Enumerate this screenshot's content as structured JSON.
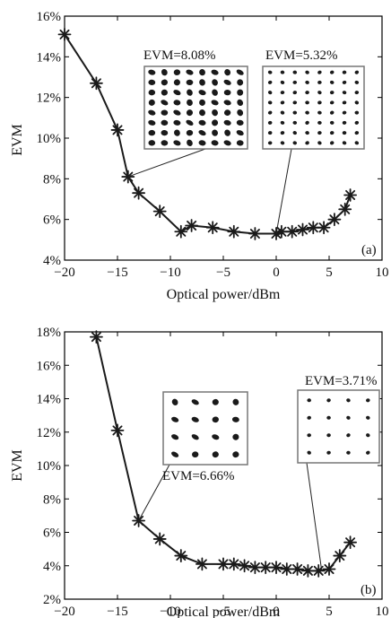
{
  "colors": {
    "line": "#1a1a1a",
    "frame": "#000000",
    "inset_border": "#777777",
    "dot": "#1a1a1a"
  },
  "chart_data": [
    {
      "type": "line",
      "panel_label": "(a)",
      "xlabel": "Optical power/dBm",
      "ylabel": "EVM",
      "xlim": [
        -20,
        10
      ],
      "ylim": [
        4,
        16
      ],
      "x_ticks": [
        -20,
        -15,
        -10,
        -5,
        0,
        5,
        10
      ],
      "y_ticks": [
        4,
        6,
        8,
        10,
        12,
        14,
        16
      ],
      "y_tick_suffix": "%",
      "grid": false,
      "series": [
        {
          "marker": "asterisk",
          "x": [
            -20,
            -17,
            -15,
            -14,
            -13,
            -11,
            -9,
            -8,
            -6,
            -4,
            -2,
            0,
            0.5,
            1.5,
            2.5,
            3.5,
            4.5,
            5.5,
            6.5,
            7
          ],
          "y": [
            15.1,
            12.7,
            10.4,
            8.1,
            7.3,
            6.4,
            5.4,
            5.7,
            5.6,
            5.4,
            5.3,
            5.3,
            5.4,
            5.4,
            5.5,
            5.6,
            5.6,
            6.0,
            6.5,
            7.2
          ]
        }
      ],
      "annotations": [
        {
          "label": "EVM=8.08%",
          "point": [
            -14,
            8.1
          ],
          "grid_n": 8
        },
        {
          "label": "EVM=5.32%",
          "point": [
            0,
            5.3
          ],
          "grid_n": 8
        }
      ]
    },
    {
      "type": "line",
      "panel_label": "(b)",
      "xlabel": "Optical power/dBm",
      "ylabel": "EVM",
      "xlim": [
        -20,
        10
      ],
      "ylim": [
        2,
        18
      ],
      "x_ticks": [
        -20,
        -15,
        -10,
        -5,
        0,
        5,
        10
      ],
      "y_ticks": [
        2,
        4,
        6,
        8,
        10,
        12,
        14,
        16,
        18
      ],
      "y_tick_suffix": "%",
      "grid": false,
      "series": [
        {
          "marker": "asterisk",
          "x": [
            -17,
            -15,
            -13,
            -11,
            -9,
            -7,
            -5,
            -4,
            -3,
            -2,
            -1,
            0,
            1,
            2,
            3,
            4,
            5,
            6
          ],
          "y": [
            17.7,
            12.1,
            6.7,
            5.6,
            4.6,
            4.1,
            4.1,
            4.1,
            4.0,
            3.9,
            3.9,
            3.9,
            3.8,
            3.8,
            3.7,
            3.7,
            3.8,
            4.6
          ]
        }
      ],
      "annotations": [
        {
          "label": "EVM=6.66%",
          "point": [
            -13,
            6.7
          ],
          "grid_n": 4
        },
        {
          "label": "EVM=3.71%",
          "point": [
            4.3,
            3.7
          ],
          "grid_n": 4
        }
      ],
      "trailing_point": [
        7,
        5.4
      ]
    }
  ]
}
